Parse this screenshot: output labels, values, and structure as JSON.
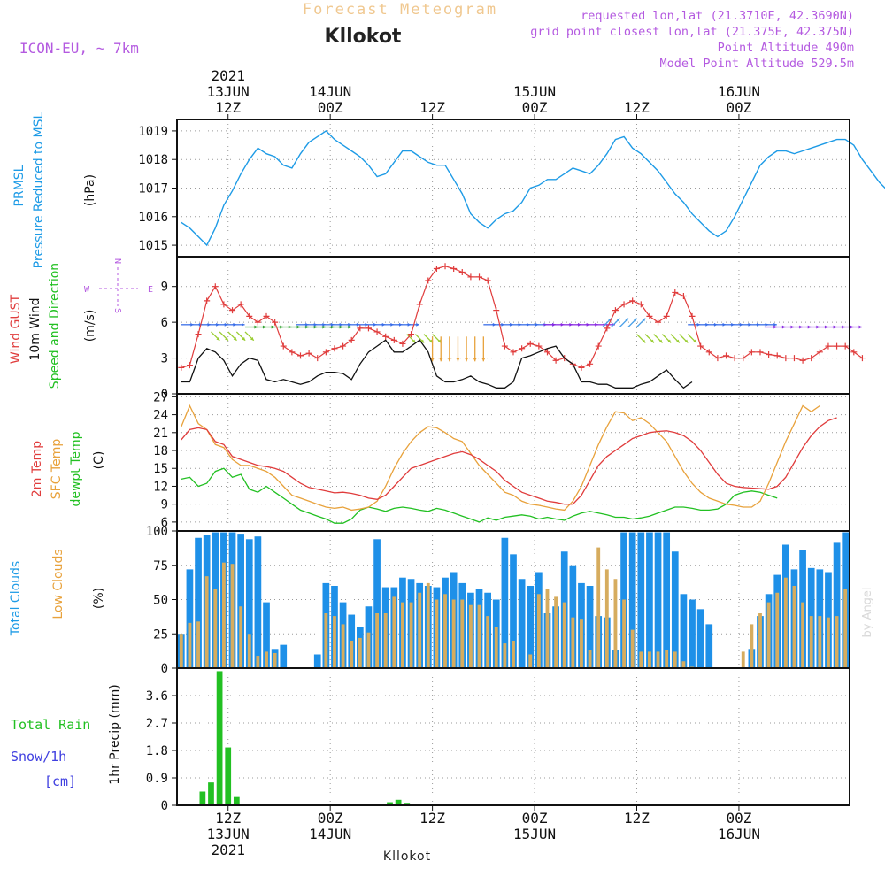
{
  "header": {
    "subtitle": "Forecast Meteogram",
    "station": "Kllokot",
    "model": "ICON-EU, ~ 7km",
    "info": [
      "requested lon,lat (21.3710E, 42.3690N)",
      "grid point closest lon,lat (21.375E, 42.375N)",
      "Point Altitude 490m",
      "Model Point Altitude 529.5m"
    ]
  },
  "footer": {
    "station": "Kllokot",
    "watermark": "by Angel"
  },
  "time_axis": {
    "ticks": [
      {
        "h": 12,
        "top": [
          "2021",
          "13JUN",
          "12Z"
        ],
        "bottom": [
          "12Z",
          "13JUN",
          "2021"
        ]
      },
      {
        "h": 24,
        "top": [
          "14JUN",
          "00Z"
        ],
        "bottom": [
          "00Z",
          "14JUN"
        ]
      },
      {
        "h": 36,
        "top": [
          "12Z"
        ],
        "bottom": [
          "12Z"
        ]
      },
      {
        "h": 48,
        "top": [
          "15JUN",
          "00Z"
        ],
        "bottom": [
          "00Z",
          "15JUN"
        ]
      },
      {
        "h": 60,
        "top": [
          "12Z"
        ],
        "bottom": [
          "12Z"
        ]
      },
      {
        "h": 72,
        "top": [
          "16JUN",
          "00Z"
        ],
        "bottom": [
          "00Z",
          "16JUN"
        ]
      }
    ],
    "hour_start": 6,
    "hour_end": 85
  },
  "chart_data": [
    {
      "type": "line",
      "panel": "pressure",
      "labels": {
        "a": "PRMSL",
        "b": "Pressure Reduced to MSL",
        "unit": "(hPa)"
      },
      "ylim": [
        1014.6,
        1019.4
      ],
      "yticks": [
        1015,
        1016,
        1017,
        1018,
        1019
      ],
      "series": [
        {
          "color": "#1e9be6",
          "x0": 6.5,
          "dx": 1,
          "values": [
            1015.8,
            1015.6,
            1015.3,
            1015.0,
            1015.6,
            1016.4,
            1016.9,
            1017.5,
            1018.0,
            1018.4,
            1018.2,
            1018.1,
            1017.8,
            1017.7,
            1018.2,
            1018.6,
            1018.8,
            1019.0,
            1018.7,
            1018.5,
            1018.3,
            1018.1,
            1017.8,
            1017.4,
            1017.5,
            1017.9,
            1018.3,
            1018.3,
            1018.1,
            1017.9,
            1017.8,
            1017.8,
            1017.3,
            1016.8,
            1016.1,
            1015.8,
            1015.6,
            1015.9,
            1016.1,
            1016.2,
            1016.5,
            1017.0,
            1017.1,
            1017.3,
            1017.3,
            1017.5,
            1017.7,
            1017.6,
            1017.5,
            1017.8,
            1018.2,
            1018.7,
            1018.8,
            1018.4,
            1018.2,
            1017.9,
            1017.6,
            1017.2,
            1016.8,
            1016.5,
            1016.1,
            1015.8,
            1015.5,
            1015.3,
            1015.5,
            1016.0,
            1016.6,
            1017.2,
            1017.8,
            1018.1,
            1018.3,
            1018.3,
            1018.2,
            1018.3,
            1018.4,
            1018.5,
            1018.6,
            1018.7,
            1018.7,
            1018.5,
            1018.0,
            1017.6,
            1017.2,
            1016.9
          ]
        }
      ]
    },
    {
      "type": "line",
      "panel": "wind",
      "labels": {
        "gust": "Wind GUST",
        "wind": "10m Wind",
        "dir": "Speed and Direction",
        "unit": "(m/s)"
      },
      "compass": {
        "n": "N",
        "s": "S",
        "e": "E",
        "w": "W"
      },
      "ylim": [
        0,
        11.5
      ],
      "yticks": [
        0,
        3,
        6,
        9
      ],
      "series": [
        {
          "color": "#e03c3c",
          "marker": "+",
          "x0": 6.5,
          "dx": 1,
          "values": [
            2.2,
            2.4,
            5.0,
            7.8,
            9.0,
            7.5,
            7.0,
            7.5,
            6.5,
            6.0,
            6.5,
            6.0,
            4.0,
            3.5,
            3.2,
            3.4,
            3.0,
            3.5,
            3.8,
            4.0,
            4.5,
            5.5,
            5.5,
            5.2,
            4.8,
            4.5,
            4.2,
            5.0,
            7.5,
            9.5,
            10.5,
            10.7,
            10.5,
            10.2,
            9.8,
            9.8,
            9.5,
            7.0,
            4.0,
            3.5,
            3.8,
            4.2,
            4.0,
            3.5,
            2.8,
            3.0,
            2.5,
            2.2,
            2.5,
            4.0,
            5.5,
            7.0,
            7.5,
            7.8,
            7.5,
            6.5,
            6.0,
            6.5,
            8.5,
            8.2,
            6.5,
            4.0,
            3.5,
            3.0,
            3.2,
            3.0,
            3.0,
            3.5,
            3.5,
            3.3,
            3.2,
            3.0,
            3.0,
            2.8,
            3.0,
            3.5,
            4.0,
            4.0,
            4.0,
            3.5,
            3.0
          ]
        },
        {
          "color": "#111111",
          "marker": "none",
          "x0": 6.5,
          "dx": 1,
          "values": [
            1.0,
            1.0,
            3.0,
            3.8,
            3.5,
            2.8,
            1.5,
            2.5,
            3.0,
            2.8,
            1.2,
            1.0,
            1.2,
            1.0,
            0.8,
            1.0,
            1.5,
            1.8,
            1.8,
            1.7,
            1.2,
            2.5,
            3.5,
            4.0,
            4.5,
            3.5,
            3.5,
            4.0,
            4.5,
            3.5,
            1.5,
            1.0,
            1.0,
            1.2,
            1.5,
            1.0,
            0.8,
            0.5,
            0.5,
            1.0,
            3.0,
            3.2,
            3.5,
            3.8,
            4.0,
            3.0,
            2.5,
            1.0,
            1.0,
            0.8,
            0.8,
            0.5,
            0.5,
            0.5,
            0.8,
            1.0,
            1.5,
            2.0,
            1.2,
            0.5,
            1.0
          ]
        }
      ],
      "arrow_bands": [
        {
          "from": 6.5,
          "to": 13,
          "speed": 5.8,
          "color": "#3a6ee8",
          "dir": "e"
        },
        {
          "from": 10,
          "to": 14,
          "speed": 5.2,
          "color": "#9acd32",
          "dir": "se"
        },
        {
          "from": 14,
          "to": 25,
          "speed": 5.6,
          "color": "#2ca02c",
          "dir": "e"
        },
        {
          "from": 20,
          "to": 33,
          "speed": 5.8,
          "color": "#3a6ee8",
          "dir": "e"
        },
        {
          "from": 33,
          "to": 36,
          "speed": 5.0,
          "color": "#9acd32",
          "dir": "se"
        },
        {
          "from": 36,
          "to": 42,
          "speed": 4.8,
          "color": "#e8a23c",
          "dir": "s"
        },
        {
          "from": 42,
          "to": 49,
          "speed": 5.8,
          "color": "#3a6ee8",
          "dir": "e"
        },
        {
          "from": 49,
          "to": 56,
          "speed": 5.8,
          "color": "#8a2be2",
          "dir": "e"
        },
        {
          "from": 56,
          "to": 60,
          "speed": 5.6,
          "color": "#4aa0e8",
          "dir": "ne"
        },
        {
          "from": 60,
          "to": 66,
          "speed": 5.0,
          "color": "#9acd32",
          "dir": "se"
        },
        {
          "from": 66,
          "to": 75,
          "speed": 5.8,
          "color": "#3a6ee8",
          "dir": "e"
        },
        {
          "from": 75,
          "to": 85,
          "speed": 5.6,
          "color": "#8a2be2",
          "dir": "e"
        }
      ]
    },
    {
      "type": "line",
      "panel": "temperature",
      "labels": {
        "t2m": "2m Temp",
        "sfc": "SFC Temp",
        "dew": "dewpt Temp",
        "unit": "(C)"
      },
      "ylim": [
        4.5,
        27.5
      ],
      "yticks": [
        6,
        9,
        12,
        15,
        18,
        21,
        24,
        27
      ],
      "series": [
        {
          "color": "#e03c3c",
          "x0": 6.5,
          "dx": 1,
          "values": [
            19.8,
            21.5,
            21.8,
            21.5,
            19.5,
            19.0,
            17.0,
            16.5,
            16.0,
            15.5,
            15.3,
            15.0,
            14.5,
            13.5,
            12.5,
            11.8,
            11.5,
            11.2,
            10.9,
            11.0,
            10.8,
            10.5,
            10.0,
            9.8,
            10.5,
            12.0,
            13.5,
            15.0,
            15.5,
            16.0,
            16.5,
            17.0,
            17.5,
            17.8,
            17.3,
            16.5,
            15.5,
            14.5,
            13.0,
            12.0,
            11.0,
            10.5,
            10.0,
            9.5,
            9.3,
            9.0,
            9.0,
            10.5,
            13.0,
            15.5,
            17.0,
            18.0,
            19.0,
            20.0,
            20.5,
            21.0,
            21.2,
            21.3,
            21.0,
            20.5,
            19.5,
            18.0,
            16.0,
            14.0,
            12.5,
            12.0,
            11.8,
            11.7,
            11.6,
            11.5,
            12.0,
            13.5,
            16.0,
            18.5,
            20.5,
            22.0,
            23.0,
            23.5
          ]
        },
        {
          "color": "#e8a23c",
          "x0": 6.5,
          "dx": 1,
          "values": [
            22.0,
            25.5,
            22.5,
            21.5,
            19.0,
            18.5,
            16.5,
            15.5,
            15.5,
            15.0,
            14.5,
            13.5,
            12.0,
            10.5,
            10.0,
            9.5,
            9.0,
            8.5,
            8.3,
            8.5,
            8.0,
            8.2,
            8.5,
            9.5,
            12.0,
            15.0,
            17.5,
            19.5,
            21.0,
            22.0,
            21.8,
            21.0,
            20.0,
            19.5,
            17.5,
            15.5,
            14.0,
            12.5,
            11.0,
            10.5,
            9.5,
            9.0,
            8.8,
            8.5,
            8.2,
            8.0,
            9.5,
            12.0,
            15.5,
            19.0,
            22.0,
            24.5,
            24.3,
            23.0,
            23.5,
            22.5,
            21.0,
            19.5,
            17.0,
            14.5,
            12.5,
            11.0,
            10.0,
            9.5,
            9.0,
            8.8,
            8.5,
            8.5,
            9.5,
            12.5,
            16.0,
            19.5,
            22.5,
            25.5,
            24.5,
            25.5
          ]
        },
        {
          "color": "#22c022",
          "x0": 6.5,
          "dx": 1,
          "values": [
            13.2,
            13.5,
            12.0,
            12.5,
            14.5,
            15.0,
            13.5,
            14.0,
            11.5,
            11.0,
            12.0,
            11.0,
            10.0,
            9.0,
            8.0,
            7.5,
            7.0,
            6.5,
            5.8,
            5.8,
            6.5,
            8.0,
            8.5,
            8.2,
            7.8,
            8.3,
            8.5,
            8.3,
            8.0,
            7.8,
            8.3,
            8.0,
            7.5,
            7.0,
            6.5,
            6.0,
            6.7,
            6.3,
            6.8,
            7.0,
            7.2,
            7.0,
            6.5,
            6.8,
            6.5,
            6.3,
            7.0,
            7.5,
            7.8,
            7.5,
            7.2,
            6.8,
            6.8,
            6.5,
            6.7,
            7.0,
            7.5,
            8.0,
            8.5,
            8.5,
            8.3,
            8.0,
            8.0,
            8.2,
            9.0,
            10.5,
            11.0,
            11.2,
            11.0,
            10.5,
            10.0
          ]
        }
      ]
    },
    {
      "type": "bar",
      "panel": "clouds",
      "labels": {
        "total": "Total Clouds",
        "low": "Low Clouds",
        "unit": "(%)"
      },
      "ylim": [
        0,
        100
      ],
      "yticks": [
        0,
        25,
        50,
        75,
        100
      ],
      "x0": 6.5,
      "dx": 1,
      "total": [
        25,
        72,
        95,
        97,
        99,
        99,
        99,
        98,
        94,
        96,
        48,
        14,
        17,
        0,
        0,
        0,
        10,
        62,
        60,
        48,
        39,
        30,
        45,
        94,
        59,
        59,
        66,
        65,
        62,
        60,
        59,
        66,
        70,
        62,
        55,
        58,
        55,
        50,
        95,
        83,
        65,
        60,
        70,
        40,
        45,
        85,
        75,
        62,
        60,
        38,
        37,
        13,
        99,
        99,
        99,
        99,
        99,
        99,
        85,
        54,
        50,
        43,
        32,
        0,
        0,
        0,
        0,
        14,
        38,
        54,
        68,
        90,
        72,
        86,
        73,
        72,
        70,
        92,
        99
      ],
      "low": [
        25,
        33,
        34,
        67,
        58,
        77,
        76,
        45,
        25,
        9,
        12,
        11,
        0,
        0,
        0,
        0,
        0,
        40,
        38,
        32,
        20,
        22,
        26,
        40,
        40,
        52,
        48,
        48,
        55,
        62,
        50,
        54,
        50,
        50,
        46,
        46,
        38,
        30,
        18,
        20,
        0,
        10,
        54,
        58,
        52,
        48,
        37,
        36,
        13,
        88,
        72,
        65,
        50,
        28,
        12,
        12,
        12,
        13,
        12,
        5,
        1,
        0,
        0,
        0,
        0,
        0,
        12,
        32,
        40,
        48,
        55,
        66,
        60,
        48,
        38,
        38,
        37,
        38,
        58
      ]
    },
    {
      "type": "bar",
      "panel": "precipitation",
      "labels": {
        "rain": "Total Rain",
        "snow": "Snow/1h",
        "snow_unit": "[cm]",
        "unit": "1hr Precip (mm)"
      },
      "ylim": [
        0,
        4.5
      ],
      "yticks": [
        0,
        0.9,
        1.8,
        2.7,
        3.6
      ],
      "bar_color": "#22c022",
      "bars": [
        {
          "h": 8,
          "v": 0.05
        },
        {
          "h": 9,
          "v": 0.45
        },
        {
          "h": 10,
          "v": 0.75
        },
        {
          "h": 11,
          "v": 4.4
        },
        {
          "h": 12,
          "v": 1.9
        },
        {
          "h": 13,
          "v": 0.3
        },
        {
          "h": 31,
          "v": 0.1
        },
        {
          "h": 32,
          "v": 0.18
        },
        {
          "h": 33,
          "v": 0.08
        },
        {
          "h": 34,
          "v": 0.03
        },
        {
          "h": 35,
          "v": 0.05
        }
      ]
    }
  ]
}
